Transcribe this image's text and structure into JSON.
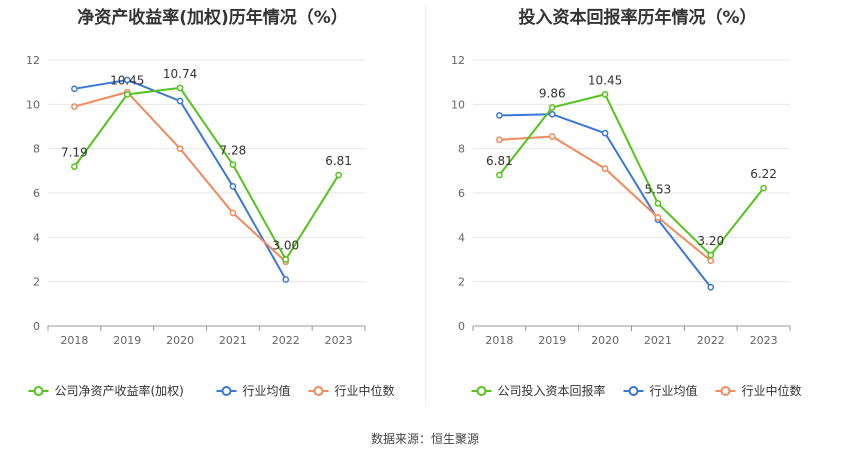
{
  "chart_data": [
    {
      "type": "line",
      "title": "净资产收益率(加权)历年情况（%）",
      "categories": [
        "2018",
        "2019",
        "2020",
        "2021",
        "2022",
        "2023"
      ],
      "ylim": [
        0,
        12
      ],
      "yticks": [
        0,
        2,
        4,
        6,
        8,
        10,
        12
      ],
      "grid": true,
      "legend_position": "bottom",
      "series": [
        {
          "name": "公司净资产收益率(加权)",
          "color": "#52c41a",
          "values": [
            7.19,
            10.45,
            10.74,
            7.28,
            3.0,
            6.81
          ],
          "labels": [
            "7.19",
            "10.45",
            "10.74",
            "7.28",
            "3.00",
            "6.81"
          ]
        },
        {
          "name": "行业均值",
          "color": "#3a77d8",
          "values": [
            10.7,
            11.1,
            10.15,
            6.3,
            2.1,
            null
          ]
        },
        {
          "name": "行业中位数",
          "color": "#f08a5d",
          "values": [
            9.9,
            10.55,
            8.0,
            5.1,
            2.9,
            null
          ]
        }
      ]
    },
    {
      "type": "line",
      "title": "投入资本回报率历年情况（%）",
      "categories": [
        "2018",
        "2019",
        "2020",
        "2021",
        "2022",
        "2023"
      ],
      "ylim": [
        0,
        12
      ],
      "yticks": [
        0,
        2,
        4,
        6,
        8,
        10,
        12
      ],
      "grid": true,
      "legend_position": "bottom",
      "series": [
        {
          "name": "公司投入资本回报率",
          "color": "#52c41a",
          "values": [
            6.81,
            9.86,
            10.45,
            5.53,
            3.2,
            6.22
          ],
          "labels": [
            "6.81",
            "9.86",
            "10.45",
            "5.53",
            "3.20",
            "6.22"
          ]
        },
        {
          "name": "行业均值",
          "color": "#3a77d8",
          "values": [
            9.5,
            9.55,
            8.7,
            4.8,
            1.75,
            null
          ]
        },
        {
          "name": "行业中位数",
          "color": "#f08a5d",
          "values": [
            8.4,
            8.55,
            7.1,
            4.9,
            2.95,
            null
          ]
        }
      ]
    }
  ],
  "source": "数据来源：恒生聚源"
}
